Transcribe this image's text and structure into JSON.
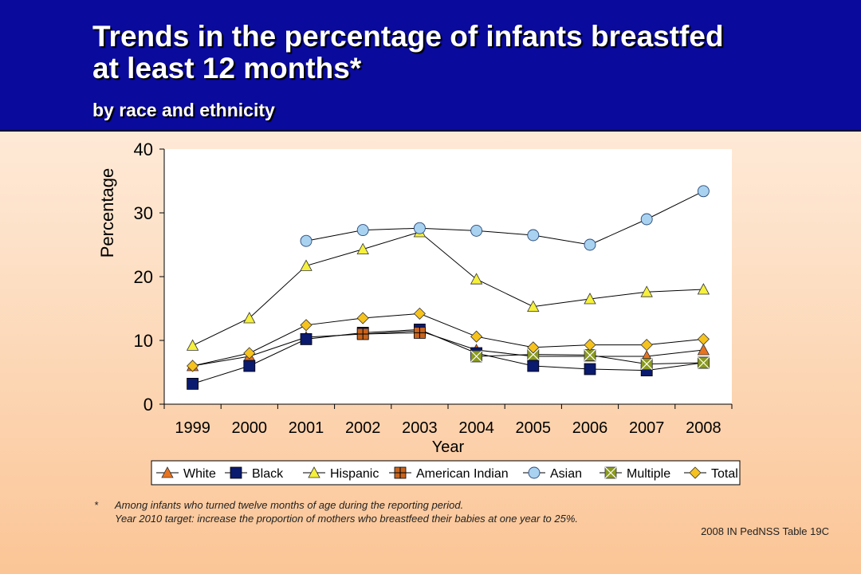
{
  "header": {
    "title_line1": "Trends in the percentage of infants breastfed",
    "title_line2": "at least 12 months*",
    "subtitle": "by race and ethnicity",
    "background_color": "#0a0a9c"
  },
  "chart_data": {
    "type": "line",
    "categories": [
      "1999",
      "2000",
      "2001",
      "2002",
      "2003",
      "2004",
      "2005",
      "2006",
      "2007",
      "2008"
    ],
    "xlabel": "Year",
    "ylabel": "Percentage",
    "ylim": [
      0,
      40
    ],
    "yticks": [
      0,
      10,
      20,
      30,
      40
    ],
    "grid": false,
    "legend_placement": "bottom",
    "series": [
      {
        "name": "White",
        "marker": "triangle",
        "color": "#e8731e",
        "values": [
          6.0,
          7.5,
          10.5,
          11.0,
          11.5,
          8.5,
          7.5,
          7.5,
          7.5,
          8.5
        ]
      },
      {
        "name": "Black",
        "marker": "square",
        "color": "#0a1a6e",
        "values": [
          3.2,
          6.0,
          10.2,
          11.2,
          11.7,
          8.0,
          6.0,
          5.5,
          5.3,
          6.5
        ]
      },
      {
        "name": "Hispanic",
        "marker": "triangle",
        "color": "#f5f03c",
        "values": [
          9.2,
          13.5,
          21.7,
          24.3,
          27.0,
          19.6,
          15.3,
          16.5,
          17.6,
          18.0
        ]
      },
      {
        "name": "American Indian",
        "marker": "square-plus",
        "color": "#c8641e",
        "values": [
          null,
          null,
          null,
          11.0,
          11.2,
          null,
          null,
          null,
          null,
          null
        ]
      },
      {
        "name": "Asian",
        "marker": "circle",
        "color": "#a8d2f0",
        "values": [
          null,
          null,
          25.6,
          27.3,
          27.6,
          27.2,
          26.5,
          25.0,
          29.0,
          33.4
        ]
      },
      {
        "name": "Multiple",
        "marker": "square-x",
        "color": "#8a9a1e",
        "values": [
          null,
          null,
          null,
          null,
          null,
          7.5,
          7.8,
          7.7,
          6.3,
          6.5
        ]
      },
      {
        "name": "Total",
        "marker": "diamond",
        "color": "#f5c21e",
        "values": [
          6.0,
          8.0,
          12.4,
          13.5,
          14.2,
          10.6,
          8.9,
          9.3,
          9.3,
          10.2
        ]
      }
    ]
  },
  "footnote": {
    "marker": "*",
    "line1": "Among infants who turned twelve months of age during the reporting period.",
    "line2": "Year 2010 target: increase the proportion of mothers who breastfeed their babies at one year to 25%."
  },
  "source": "2008 IN PedNSS Table 19C"
}
